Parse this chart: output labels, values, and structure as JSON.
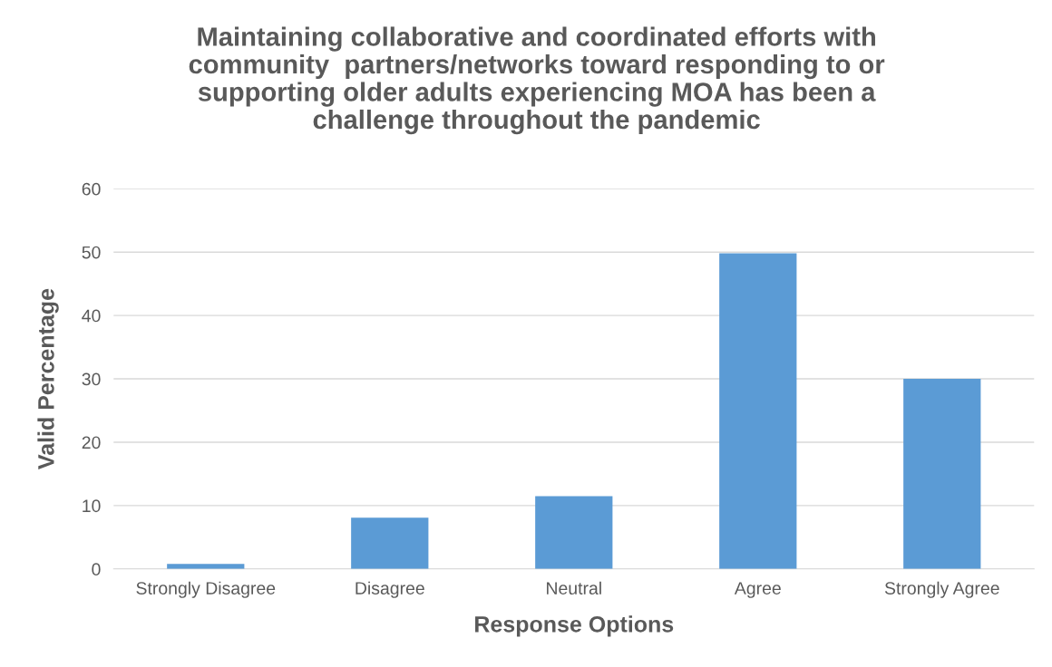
{
  "chart_data": {
    "type": "bar",
    "title": "Maintaining collaborative and coordinated efforts with\ncommunity  partners/networks toward responding to or\nsupporting older adults experiencing MOA has been a\nchallenge throughout the pandemic",
    "xlabel": "Response Options",
    "ylabel": "Valid Percentage",
    "categories": [
      "Strongly Disagree",
      "Disagree",
      "Neutral",
      "Agree",
      "Strongly Agree"
    ],
    "values": [
      0.8,
      8.1,
      11.5,
      49.8,
      30.0
    ],
    "color": "#5b9bd5",
    "ylim": [
      0,
      60
    ],
    "yticks": [
      0,
      10,
      20,
      30,
      40,
      50,
      60
    ],
    "grid": "y"
  }
}
